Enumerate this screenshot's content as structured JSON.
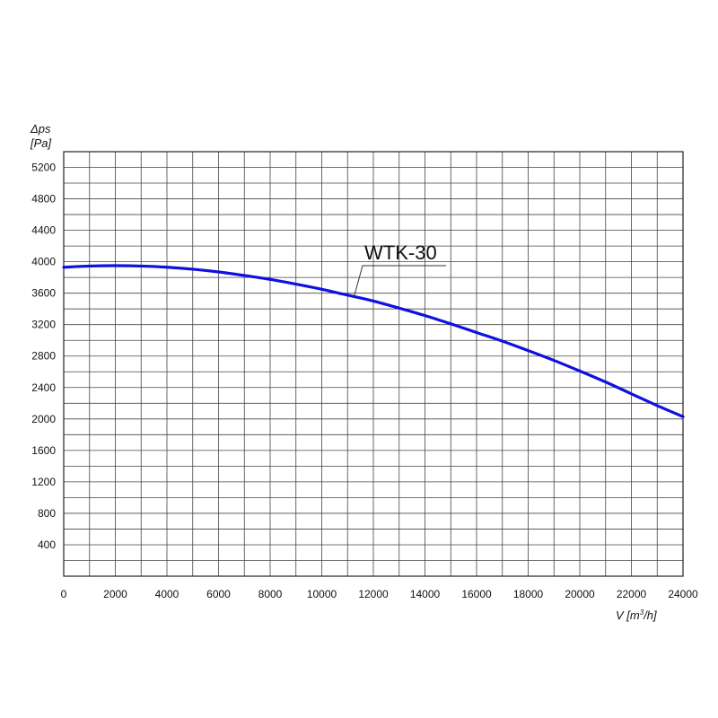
{
  "chart_data": {
    "type": "line",
    "title": "",
    "ylabel_line1": "Δps",
    "ylabel_line2": "[Pa]",
    "xlabel_prefix": "V [m",
    "xlabel_sup": "3",
    "xlabel_suffix": "/h]",
    "xlim": [
      0,
      24000
    ],
    "ylim": [
      0,
      5400
    ],
    "xticks": [
      0,
      2000,
      4000,
      6000,
      8000,
      10000,
      12000,
      14000,
      16000,
      18000,
      20000,
      22000,
      24000
    ],
    "yticks": [
      400,
      800,
      1200,
      1600,
      2000,
      2400,
      2800,
      3200,
      3600,
      4000,
      4400,
      4800,
      5200
    ],
    "grid": true,
    "series": [
      {
        "name": "WTK-30",
        "color": "#1010e0",
        "x": [
          0,
          1000,
          2000,
          3000,
          4000,
          5000,
          6000,
          7000,
          8000,
          9000,
          10000,
          11000,
          12000,
          13000,
          14000,
          15000,
          16000,
          17000,
          18000,
          19000,
          20000,
          21000,
          22000,
          23000,
          24000
        ],
        "y": [
          3930,
          3945,
          3950,
          3945,
          3930,
          3905,
          3870,
          3825,
          3775,
          3715,
          3650,
          3575,
          3500,
          3410,
          3315,
          3210,
          3100,
          2990,
          2870,
          2745,
          2610,
          2470,
          2320,
          2170,
          2030
        ]
      }
    ]
  }
}
